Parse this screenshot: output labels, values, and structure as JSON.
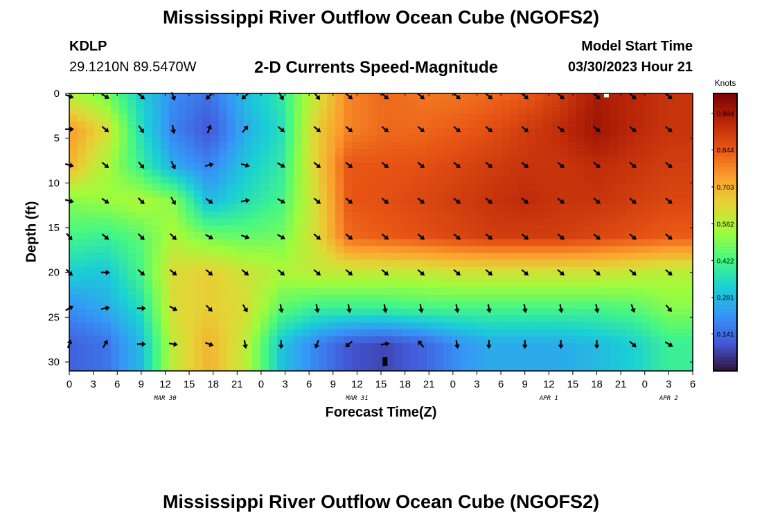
{
  "header": {
    "title": "Mississippi River Outflow Ocean Cube (NGOFS2)",
    "station": "KDLP",
    "coordinates": "29.1210N  89.5470W",
    "subtitle": "2-D Currents Speed-Magnitude",
    "model_start_label": "Model Start Time",
    "model_start_value": "03/30/2023 Hour 21"
  },
  "footer": {
    "title": "Mississippi River Outflow Ocean Cube (NGOFS2)"
  },
  "chart_data": {
    "type": "heatmap",
    "xlabel": "Forecast Time(Z)",
    "ylabel": "Depth (ft)",
    "x_tick_labels": [
      "0",
      "3",
      "6",
      "9",
      "12",
      "15",
      "18",
      "21",
      "0",
      "3",
      "6",
      "9",
      "12",
      "15",
      "18",
      "21",
      "0",
      "3",
      "6",
      "9",
      "12",
      "15",
      "18",
      "21",
      "0",
      "3",
      "6"
    ],
    "x_date_labels": [
      {
        "text": "MAR 30",
        "hours": 12
      },
      {
        "text": "MAR 31",
        "hours": 36
      },
      {
        "text": "APR 1",
        "hours": 60
      },
      {
        "text": "APR 2",
        "hours": 75
      }
    ],
    "x_range_hours": [
      0,
      78
    ],
    "y_ticks": [
      0,
      5,
      10,
      15,
      20,
      25,
      30
    ],
    "y_range": [
      0,
      31
    ],
    "y_inverted": true,
    "colorbar": {
      "unit": "Knots",
      "ticks": [
        0.141,
        0.281,
        0.422,
        0.562,
        0.703,
        0.844,
        0.984
      ],
      "range": [
        0.0,
        1.06
      ],
      "colormap": "turbo"
    },
    "arrow_times_hours": [
      0,
      4.5,
      9,
      13,
      17.5,
      22,
      26.5,
      31,
      35,
      39.5,
      44,
      48.5,
      52.5,
      57,
      61.5,
      66,
      70.5,
      75
    ],
    "arrow_depths_ft": [
      0,
      4,
      8,
      12,
      16,
      20,
      24,
      28
    ],
    "speed_grid": {
      "description": "Approximate current speed (knots) at arrow grid points; rows = depths, cols = times",
      "rows": [
        [
          0.55,
          0.48,
          0.32,
          0.2,
          0.15,
          0.28,
          0.38,
          0.6,
          0.78,
          0.82,
          0.8,
          0.8,
          0.82,
          0.84,
          0.9,
          0.98,
          0.95,
          0.92
        ],
        [
          0.75,
          0.62,
          0.35,
          0.18,
          0.1,
          0.25,
          0.35,
          0.65,
          0.78,
          0.82,
          0.82,
          0.84,
          0.86,
          0.9,
          0.94,
          1.0,
          0.95,
          0.92
        ],
        [
          0.7,
          0.55,
          0.4,
          0.25,
          0.18,
          0.3,
          0.38,
          0.65,
          0.85,
          0.85,
          0.86,
          0.88,
          0.9,
          0.92,
          0.92,
          0.94,
          0.92,
          0.9
        ],
        [
          0.5,
          0.52,
          0.55,
          0.5,
          0.28,
          0.35,
          0.42,
          0.62,
          0.85,
          0.86,
          0.88,
          0.9,
          0.92,
          0.94,
          0.92,
          0.92,
          0.9,
          0.88
        ],
        [
          0.42,
          0.4,
          0.45,
          0.55,
          0.48,
          0.46,
          0.48,
          0.62,
          0.82,
          0.84,
          0.86,
          0.88,
          0.9,
          0.9,
          0.9,
          0.88,
          0.86,
          0.84
        ],
        [
          0.32,
          0.3,
          0.42,
          0.62,
          0.65,
          0.6,
          0.55,
          0.58,
          0.58,
          0.58,
          0.58,
          0.6,
          0.6,
          0.6,
          0.6,
          0.6,
          0.58,
          0.56
        ],
        [
          0.2,
          0.25,
          0.35,
          0.62,
          0.65,
          0.62,
          0.45,
          0.4,
          0.4,
          0.4,
          0.42,
          0.42,
          0.42,
          0.42,
          0.42,
          0.42,
          0.44,
          0.5
        ],
        [
          0.12,
          0.15,
          0.28,
          0.58,
          0.7,
          0.58,
          0.3,
          0.18,
          0.1,
          0.08,
          0.12,
          0.2,
          0.25,
          0.25,
          0.25,
          0.28,
          0.32,
          0.4
        ]
      ]
    },
    "direction_grid_deg": {
      "description": "Approximate arrow direction (degrees clockwise from east) at arrow grid points",
      "rows": [
        [
          20,
          30,
          40,
          70,
          135,
          140,
          60,
          50,
          40,
          40,
          40,
          40,
          40,
          40,
          40,
          40,
          40,
          40
        ],
        [
          0,
          40,
          55,
          80,
          -70,
          -50,
          40,
          40,
          40,
          40,
          40,
          40,
          40,
          40,
          40,
          40,
          40,
          40
        ],
        [
          15,
          40,
          50,
          65,
          -15,
          15,
          30,
          40,
          40,
          40,
          40,
          40,
          40,
          40,
          40,
          40,
          40,
          40
        ],
        [
          15,
          35,
          45,
          60,
          35,
          -10,
          30,
          40,
          40,
          40,
          40,
          40,
          40,
          40,
          40,
          40,
          40,
          40
        ],
        [
          50,
          40,
          45,
          45,
          30,
          20,
          30,
          40,
          40,
          40,
          40,
          40,
          40,
          40,
          40,
          40,
          40,
          40
        ],
        [
          45,
          0,
          40,
          40,
          40,
          40,
          40,
          40,
          40,
          40,
          40,
          40,
          40,
          40,
          40,
          40,
          40,
          40
        ],
        [
          -30,
          -10,
          0,
          30,
          45,
          60,
          80,
          80,
          80,
          80,
          80,
          80,
          80,
          80,
          80,
          80,
          70,
          50
        ],
        [
          -70,
          -60,
          0,
          10,
          20,
          80,
          90,
          110,
          140,
          -10,
          -130,
          80,
          90,
          90,
          90,
          90,
          40,
          30
        ]
      ]
    },
    "markers": [
      {
        "color": "#ffffff",
        "hours": 67.2,
        "depth_ft": 0.2
      },
      {
        "color": "#000000",
        "hours": 39.5,
        "depth_ft": 30
      }
    ]
  }
}
